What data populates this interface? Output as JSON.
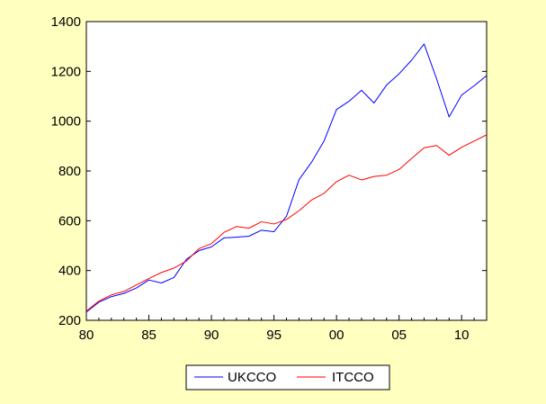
{
  "chart_data": {
    "type": "line",
    "title": "",
    "xlabel": "",
    "ylabel": "",
    "x_tick_labels": [
      "80",
      "85",
      "90",
      "95",
      "00",
      "05",
      "10"
    ],
    "y_tick_labels": [
      "200",
      "400",
      "600",
      "800",
      "1000",
      "1200",
      "1400"
    ],
    "xlim": [
      1980,
      2012
    ],
    "ylim": [
      200,
      1400
    ],
    "grid": false,
    "legend_position": "bottom",
    "x": [
      1980,
      1981,
      1982,
      1983,
      1984,
      1985,
      1986,
      1987,
      1988,
      1989,
      1990,
      1991,
      1992,
      1993,
      1994,
      1995,
      1996,
      1997,
      1998,
      1999,
      2000,
      2001,
      2002,
      2003,
      2004,
      2005,
      2006,
      2007,
      2008,
      2009,
      2010,
      2011,
      2012
    ],
    "series": [
      {
        "name": "UKCCO",
        "color": "#0000FF",
        "values": [
          233,
          273,
          295,
          308,
          330,
          362,
          350,
          372,
          445,
          480,
          495,
          531,
          534,
          538,
          562,
          556,
          618,
          765,
          835,
          920,
          1047,
          1080,
          1124,
          1073,
          1145,
          1190,
          1245,
          1310,
          1170,
          1017,
          1105,
          1142,
          1183
        ]
      },
      {
        "name": "ITCCO",
        "color": "#FF0000",
        "values": [
          237,
          277,
          302,
          316,
          342,
          368,
          392,
          410,
          438,
          488,
          508,
          553,
          577,
          570,
          596,
          587,
          605,
          640,
          683,
          710,
          757,
          783,
          764,
          778,
          783,
          806,
          850,
          893,
          902,
          863,
          895,
          920,
          945
        ]
      }
    ]
  }
}
